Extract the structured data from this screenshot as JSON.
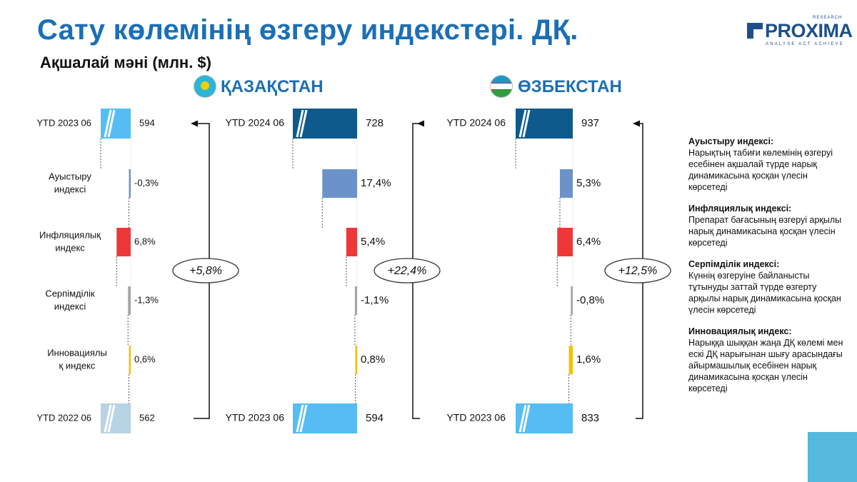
{
  "title": "Сату көлемінің өзгеру индекстері. ДҚ.",
  "subtitle": "Ақшалай мәні (млн. $)",
  "logo": {
    "word": "PROXIMA",
    "research": "RESEARCH",
    "tagline": "ANALYSE ACT ACHIEVE"
  },
  "colors": {
    "title": "#1b6fb5",
    "start": "#55bdf3",
    "start_kz": "#b7d3e4",
    "end": "#0e5a8c",
    "end_kz": "#55bdf3",
    "switch": "#6b93c9",
    "inflation": "#ee3838",
    "elasticity": "#a6a6a6",
    "innovation": "#f2c200"
  },
  "countries": [
    {
      "name": "ҚАЗАҚСТАН",
      "flag": "kazakhstan-flag"
    },
    {
      "name": "ӨЗБЕКСТАН",
      "flag": "uzbekistan-flag"
    }
  ],
  "chart_data": [
    {
      "type": "bar",
      "categories": [
        "YTD 2023 06",
        "Ауыстыру индексі",
        "Инфляциялық индекс",
        "Серпімділік индексі",
        "Инновациялық индекс",
        "YTD 2022 06"
      ],
      "values": [
        594,
        -0.3,
        6.8,
        -1.3,
        0.6,
        562
      ],
      "value_labels": [
        "594",
        "-0,3%",
        "6,8%",
        "-1,3%",
        "0,6%",
        "562"
      ],
      "change_label": "+5,8%"
    },
    {
      "type": "bar",
      "categories": [
        "YTD 2024 06",
        "",
        "",
        "",
        "",
        "YTD 2023 06"
      ],
      "values": [
        728,
        17.4,
        5.4,
        -1.1,
        0.8,
        594
      ],
      "value_labels": [
        "728",
        "17,4%",
        "5,4%",
        "-1,1%",
        "0,8%",
        "594"
      ],
      "change_label": "+22,4%"
    },
    {
      "type": "bar",
      "categories": [
        "YTD 2024 06",
        "",
        "",
        "",
        "",
        "YTD 2023 06"
      ],
      "values": [
        937,
        5.3,
        6.4,
        -0.8,
        1.6,
        833
      ],
      "value_labels": [
        "937",
        "5,3%",
        "6,4%",
        "-0,8%",
        "1,6%",
        "833"
      ],
      "change_label": "+12,5%"
    }
  ],
  "legend": [
    {
      "title": "Ауыстыру индексі:",
      "text": "Нарықтың табиғи көлемінің өзгеруі есебінен ақшалай түрде нарық динамикасына қосқан үлесін көрсетеді"
    },
    {
      "title": "Инфляциялық индексі:",
      "text": "Препарат бағасының өзгеруі арқылы нарық динамикасына қосқан үлесін көрсетеді"
    },
    {
      "title": "Серпімділік индексі:",
      "text": "Күннің өзгеруіне байланысты тұтынуды заттай түрде өзгерту арқылы нарық динамикасына қосқан үлесін көрсетеді"
    },
    {
      "title": "Инновациялық индекс:",
      "text": "Нарыққа шыққан жаңа ДҚ көлемі мен ескі ДҚ нарығынан шығу арасындағы айырмашылық есебінен нарық динамикасына қосқан үлесін көрсетеді"
    }
  ]
}
